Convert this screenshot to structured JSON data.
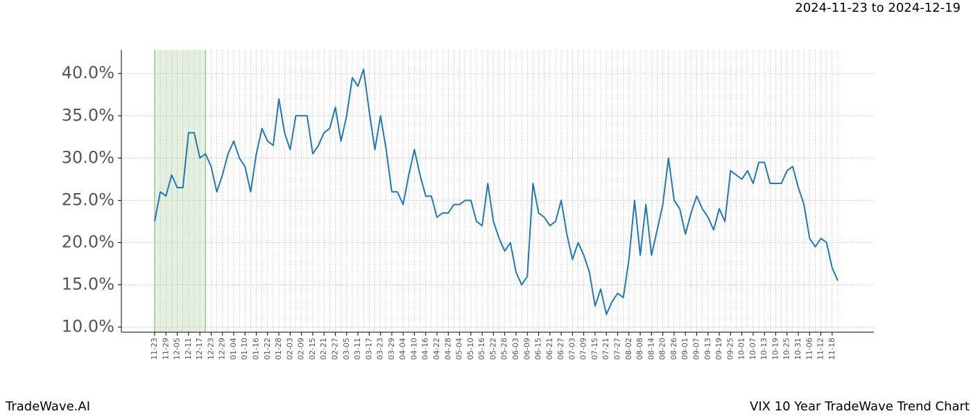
{
  "chart_data": {
    "type": "line",
    "title": "2024-11-23 to 2024-12-19",
    "footer_left": "TradeWave.AI",
    "footer_right": "VIX 10 Year TradeWave Trend Chart",
    "categories": [
      "11-23",
      null,
      "11-29",
      null,
      "12-05",
      null,
      "12-11",
      null,
      "12-17",
      null,
      "12-23",
      null,
      "12-29",
      null,
      "01-04",
      null,
      "01-10",
      null,
      "01-16",
      null,
      "01-22",
      null,
      "01-28",
      null,
      "02-03",
      null,
      "02-09",
      null,
      "02-15",
      null,
      "02-21",
      null,
      "02-27",
      null,
      "03-05",
      null,
      "03-11",
      null,
      "03-17",
      null,
      "03-23",
      null,
      "03-29",
      null,
      "04-04",
      null,
      "04-10",
      null,
      "04-16",
      null,
      "04-22",
      null,
      "04-28",
      null,
      "05-04",
      null,
      "05-10",
      null,
      "05-16",
      null,
      "05-22",
      null,
      "05-28",
      null,
      "06-03",
      null,
      "06-09",
      null,
      "06-15",
      null,
      "06-21",
      null,
      "06-27",
      null,
      "07-03",
      null,
      "07-09",
      null,
      "07-15",
      null,
      "07-21",
      null,
      "07-27",
      null,
      "08-02",
      null,
      "08-08",
      null,
      "08-14",
      null,
      "08-20",
      null,
      "08-26",
      null,
      "09-01",
      null,
      "09-07",
      null,
      "09-13",
      null,
      "09-19",
      null,
      "09-25",
      null,
      "10-01",
      null,
      "10-07",
      null,
      "10-13",
      null,
      "10-19",
      null,
      "10-25",
      null,
      "10-31",
      null,
      "11-06",
      null,
      "11-12",
      null,
      "11-18",
      null
    ],
    "series": [
      {
        "color": "#1f77b4",
        "values": [
          22.5,
          26,
          25.5,
          28,
          26.5,
          26.5,
          33,
          33,
          30,
          30.5,
          29,
          26,
          28,
          30.5,
          32,
          30,
          29,
          26,
          30.5,
          33.5,
          32,
          31.5,
          37,
          33,
          31,
          35,
          35,
          35,
          30.5,
          31.5,
          33,
          33.5,
          36,
          32,
          35,
          39.5,
          38.5,
          40.5,
          35.5,
          31,
          35,
          31,
          26,
          26,
          24.5,
          28,
          31,
          28,
          25.5,
          25.5,
          23,
          23.5,
          23.5,
          24.5,
          24.5,
          25,
          25,
          22.5,
          22,
          27,
          22.5,
          20.5,
          19,
          20,
          16.5,
          15,
          16,
          27,
          23.5,
          23,
          22,
          22.5,
          25,
          21,
          18,
          20,
          18.5,
          16.5,
          12.5,
          14.5,
          11.5,
          13,
          14,
          13.5,
          18,
          25,
          18.5,
          24.5,
          18.5,
          21.5,
          24.5,
          30,
          25,
          24,
          21,
          23.5,
          25.5,
          24,
          23,
          21.5,
          24,
          22.5,
          28.5,
          28,
          27.5,
          28.5,
          27,
          29.5,
          29.5,
          27,
          27,
          27,
          28.5,
          29,
          26.5,
          24.5,
          20.5,
          19.5,
          20.5,
          20,
          17,
          15.5
        ]
      }
    ],
    "ylim": [
      9.4,
      42.8
    ],
    "yticks": [
      {
        "value": 10,
        "label": "10.0%"
      },
      {
        "value": 15,
        "label": "15.0%"
      },
      {
        "value": 20,
        "label": "20.0%"
      },
      {
        "value": 25,
        "label": "25.0%"
      },
      {
        "value": 30,
        "label": "30.0%"
      },
      {
        "value": 35,
        "label": "35.0%"
      },
      {
        "value": 40,
        "label": "40.0%"
      }
    ],
    "grid": true,
    "highlight_index_range": [
      0,
      9
    ],
    "highlight_color": "#d9ead3"
  }
}
